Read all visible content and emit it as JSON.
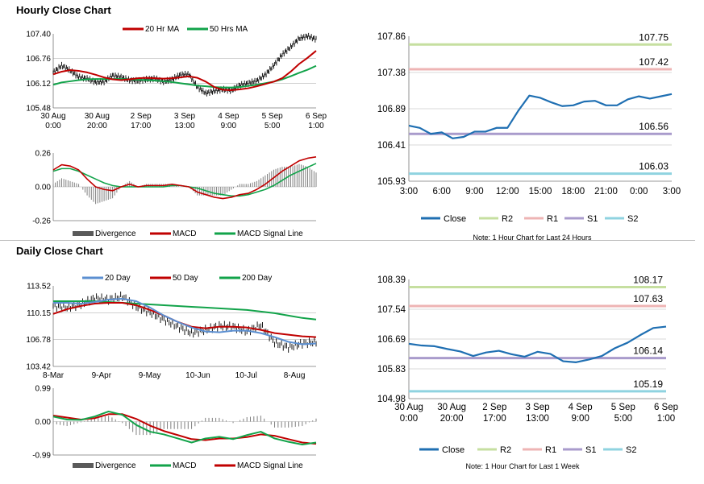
{
  "titles": {
    "hourly": "Hourly Close Chart",
    "daily": "Daily Close Chart"
  },
  "colors": {
    "close": "#1f6fb2",
    "r2": "#c6dfa0",
    "r1": "#eeb4b4",
    "s1": "#a99bcc",
    "s2": "#8fd3e0",
    "ma_short": "#c00000",
    "ma_long": "#12a34a",
    "ma_mid": "#5b8fd1",
    "divergence": "#7f7f7f",
    "price": "#000000",
    "grid": "#b3b3b3"
  },
  "chart_data": [
    {
      "id": "hourly_price",
      "type": "line",
      "y_ticks": [
        "107.40",
        "106.76",
        "106.12",
        "105.48"
      ],
      "ylim": [
        105.48,
        107.4
      ],
      "x_ticks": [
        [
          "30 Aug",
          "0:00"
        ],
        [
          "30 Aug",
          "20:00"
        ],
        [
          "2 Sep",
          "17:00"
        ],
        [
          "3 Sep",
          "13:00"
        ],
        [
          "4 Sep",
          "9:00"
        ],
        [
          "5 Sep",
          "5:00"
        ],
        [
          "6 Sep",
          "1:00"
        ]
      ],
      "legend": [
        "20 Hr MA",
        "50 Hrs MA"
      ],
      "series": [
        {
          "name": "20 Hr MA",
          "values": [
            106.35,
            106.42,
            106.46,
            106.44,
            106.4,
            106.34,
            106.27,
            106.22,
            106.2,
            106.22,
            106.25,
            106.26,
            106.25,
            106.24,
            106.25,
            106.27,
            106.3,
            106.26,
            106.16,
            106.02,
            105.95,
            105.94,
            105.96,
            105.99,
            106.04,
            106.1,
            106.16,
            106.25,
            106.42,
            106.62,
            106.78,
            106.96
          ]
        },
        {
          "name": "50 Hrs MA",
          "values": [
            106.08,
            106.14,
            106.17,
            106.2,
            106.22,
            106.23,
            106.23,
            106.23,
            106.23,
            106.22,
            106.21,
            106.2,
            106.19,
            106.17,
            106.15,
            106.12,
            106.09,
            106.06,
            106.04,
            106.02,
            106.01,
            106.01,
            106.02,
            106.05,
            106.08,
            106.12,
            106.16,
            106.22,
            106.3,
            106.39,
            106.47,
            106.57
          ]
        },
        {
          "name": "Close",
          "values": [
            106.4,
            106.58,
            106.45,
            106.28,
            106.24,
            106.15,
            106.16,
            106.32,
            106.28,
            106.2,
            106.18,
            106.22,
            106.24,
            106.16,
            106.22,
            106.34,
            106.35,
            106.02,
            105.86,
            105.92,
            105.96,
            105.93,
            106.07,
            106.12,
            106.18,
            106.34,
            106.58,
            106.86,
            107.06,
            107.28,
            107.34,
            107.26
          ]
        }
      ]
    },
    {
      "id": "hourly_macd",
      "type": "line",
      "y_ticks": [
        "0.26",
        "0.00",
        "-0.26"
      ],
      "ylim": [
        -0.26,
        0.26
      ],
      "legend": [
        "Divergence",
        "MACD",
        "MACD Signal Line"
      ],
      "series": [
        {
          "name": "MACD",
          "values": [
            0.13,
            0.17,
            0.16,
            0.13,
            0.06,
            0.0,
            -0.02,
            -0.03,
            0.0,
            0.02,
            0.0,
            0.01,
            0.01,
            0.01,
            0.02,
            0.01,
            0.0,
            -0.04,
            -0.06,
            -0.08,
            -0.09,
            -0.08,
            -0.06,
            -0.05,
            -0.02,
            0.02,
            0.07,
            0.12,
            0.16,
            0.2,
            0.22,
            0.23
          ]
        },
        {
          "name": "MACD Signal Line",
          "values": [
            0.12,
            0.14,
            0.14,
            0.12,
            0.09,
            0.06,
            0.03,
            0.01,
            0.0,
            0.0,
            0.0,
            0.0,
            0.0,
            0.0,
            0.01,
            0.01,
            0.0,
            -0.01,
            -0.03,
            -0.05,
            -0.06,
            -0.07,
            -0.07,
            -0.06,
            -0.04,
            -0.02,
            0.01,
            0.05,
            0.09,
            0.12,
            0.15,
            0.18
          ]
        }
      ]
    },
    {
      "id": "hourly_levels",
      "type": "line",
      "y_ticks": [
        "107.86",
        "107.38",
        "106.89",
        "106.41",
        "105.93"
      ],
      "ylim": [
        105.93,
        107.86
      ],
      "x_ticks": [
        "3:00",
        "6:00",
        "9:00",
        "12:00",
        "15:00",
        "18:00",
        "21:00",
        "0:00",
        "3:00"
      ],
      "levels": [
        {
          "name": "R2",
          "value": 107.75,
          "label": "107.75"
        },
        {
          "name": "R1",
          "value": 107.42,
          "label": "107.42"
        },
        {
          "name": "S1",
          "value": 106.56,
          "label": "106.56"
        },
        {
          "name": "S2",
          "value": 106.03,
          "label": "106.03"
        }
      ],
      "legend": [
        "Close",
        "R2",
        "R1",
        "S1",
        "S2"
      ],
      "note": "Note: 1 Hour Chart for Last 24 Hours",
      "series": [
        {
          "name": "Close",
          "values": [
            106.67,
            106.64,
            106.56,
            106.58,
            106.5,
            106.52,
            106.59,
            106.59,
            106.64,
            106.64,
            106.87,
            107.07,
            107.04,
            106.98,
            106.93,
            106.94,
            106.99,
            107.0,
            106.94,
            106.94,
            107.02,
            107.06,
            107.03,
            107.06,
            107.09
          ]
        }
      ]
    },
    {
      "id": "daily_price",
      "type": "line",
      "y_ticks": [
        "113.52",
        "110.15",
        "106.78",
        "103.42"
      ],
      "ylim": [
        103.42,
        113.52
      ],
      "x_ticks": [
        "8-Mar",
        "9-Apr",
        "9-May",
        "10-Jun",
        "10-Jul",
        "8-Aug"
      ],
      "legend": [
        "20 Day",
        "50 Day",
        "200 Day"
      ],
      "series": [
        {
          "name": "20 Day",
          "values": [
            111.4,
            111.4,
            111.3,
            111.5,
            111.8,
            111.9,
            111.6,
            110.8,
            109.8,
            109.0,
            108.3,
            107.8,
            107.7,
            107.9,
            107.9,
            107.6,
            107.1,
            106.5,
            106.2,
            106.3
          ]
        },
        {
          "name": "50 Day",
          "values": [
            110.0,
            110.6,
            111.0,
            111.3,
            111.4,
            111.4,
            111.1,
            110.5,
            109.8,
            109.0,
            108.4,
            108.2,
            108.4,
            108.4,
            108.3,
            108.0,
            107.6,
            107.4,
            107.2,
            107.1
          ]
        },
        {
          "name": "200 Day",
          "values": [
            111.6,
            111.6,
            111.6,
            111.6,
            111.5,
            111.4,
            111.3,
            111.2,
            111.1,
            111.0,
            110.9,
            110.8,
            110.7,
            110.6,
            110.5,
            110.3,
            110.1,
            109.8,
            109.5,
            109.3
          ]
        },
        {
          "name": "Close",
          "values": [
            111.0,
            110.8,
            111.2,
            112.0,
            111.8,
            112.2,
            110.9,
            110.2,
            109.3,
            108.4,
            107.6,
            108.0,
            108.5,
            108.4,
            107.8,
            108.6,
            106.4,
            105.8,
            106.3,
            106.5
          ]
        }
      ]
    },
    {
      "id": "daily_macd",
      "type": "line",
      "y_ticks": [
        "0.99",
        "0.00",
        "-0.99"
      ],
      "ylim": [
        -0.99,
        0.99
      ],
      "legend": [
        "Divergence",
        "MACD",
        "MACD Signal Line"
      ],
      "series": [
        {
          "name": "MACD",
          "values": [
            0.15,
            0.06,
            0.05,
            0.15,
            0.3,
            0.2,
            -0.1,
            -0.3,
            -0.38,
            -0.5,
            -0.62,
            -0.5,
            -0.45,
            -0.52,
            -0.4,
            -0.3,
            -0.5,
            -0.6,
            -0.68,
            -0.62
          ]
        },
        {
          "name": "MACD Signal Line",
          "values": [
            0.18,
            0.12,
            0.06,
            0.1,
            0.22,
            0.22,
            0.08,
            -0.12,
            -0.28,
            -0.4,
            -0.52,
            -0.55,
            -0.5,
            -0.5,
            -0.46,
            -0.38,
            -0.42,
            -0.52,
            -0.62,
            -0.66
          ]
        }
      ]
    },
    {
      "id": "daily_levels",
      "type": "line",
      "y_ticks": [
        "108.39",
        "107.54",
        "106.69",
        "105.83",
        "104.98"
      ],
      "ylim": [
        104.98,
        108.39
      ],
      "x_ticks": [
        [
          "30 Aug",
          "0:00"
        ],
        [
          "30 Aug",
          "20:00"
        ],
        [
          "2 Sep",
          "17:00"
        ],
        [
          "3 Sep",
          "13:00"
        ],
        [
          "4 Sep",
          "9:00"
        ],
        [
          "5 Sep",
          "5:00"
        ],
        [
          "6 Sep",
          "1:00"
        ]
      ],
      "levels": [
        {
          "name": "R2",
          "value": 108.17,
          "label": "108.17"
        },
        {
          "name": "R1",
          "value": 107.63,
          "label": "107.63"
        },
        {
          "name": "S1",
          "value": 106.14,
          "label": "106.14"
        },
        {
          "name": "S2",
          "value": 105.19,
          "label": "105.19"
        }
      ],
      "legend": [
        "Close",
        "R2",
        "R1",
        "S1",
        "S2"
      ],
      "note": "Note: 1 Hour Chart for Last 1 Week",
      "series": [
        {
          "name": "Close",
          "values": [
            106.55,
            106.5,
            106.48,
            106.4,
            106.33,
            106.2,
            106.3,
            106.35,
            106.25,
            106.18,
            106.32,
            106.26,
            106.05,
            106.02,
            106.1,
            106.2,
            106.42,
            106.58,
            106.8,
            107.0,
            107.04
          ]
        }
      ]
    }
  ]
}
